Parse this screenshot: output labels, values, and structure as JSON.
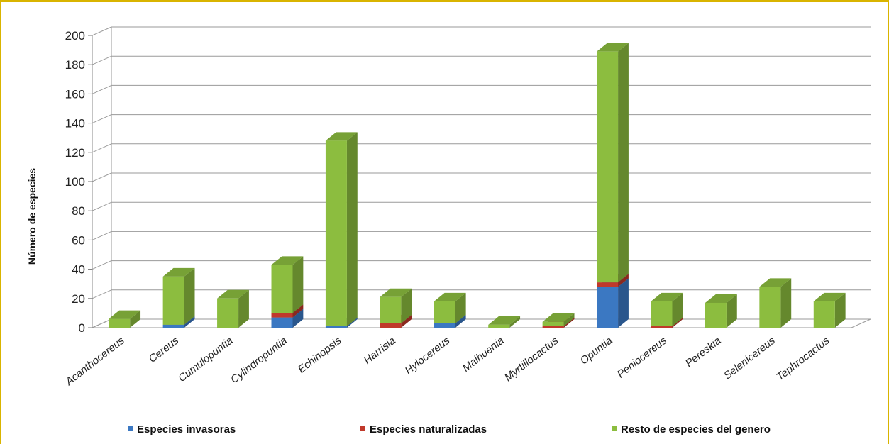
{
  "chart_data": {
    "type": "bar",
    "stacked": true,
    "three_d": true,
    "ylabel": "Número de especies",
    "xlabel": "",
    "ylim": [
      0,
      200
    ],
    "ytick_step": 20,
    "grid": true,
    "legend_position": "bottom",
    "categories": [
      "Acanthocereus",
      "Cereus",
      "Cumulopuntia",
      "Cylindropuntia",
      "Echinopsis",
      "Harrisia",
      "Hylocereus",
      "Maihuenia",
      "Myrtillocactus",
      "Opuntia",
      "Peniocereus",
      "Pereskia",
      "Selenicereus",
      "Tephrocactus"
    ],
    "series": [
      {
        "name": "Especies invasoras",
        "color": "#3b78c2",
        "values": [
          0,
          2,
          0,
          7,
          1,
          0,
          3,
          0,
          0,
          28,
          0,
          0,
          0,
          0
        ]
      },
      {
        "name": "Especies naturalizadas",
        "color": "#c0392b",
        "values": [
          0,
          0,
          0,
          3,
          0,
          3,
          0,
          0,
          1,
          3,
          1,
          0,
          0,
          0
        ]
      },
      {
        "name": "Resto de especies del genero",
        "color": "#8cbd3f",
        "values": [
          6,
          33,
          20,
          33,
          127,
          18,
          15,
          2,
          3,
          158,
          17,
          17,
          28,
          18
        ]
      }
    ]
  }
}
